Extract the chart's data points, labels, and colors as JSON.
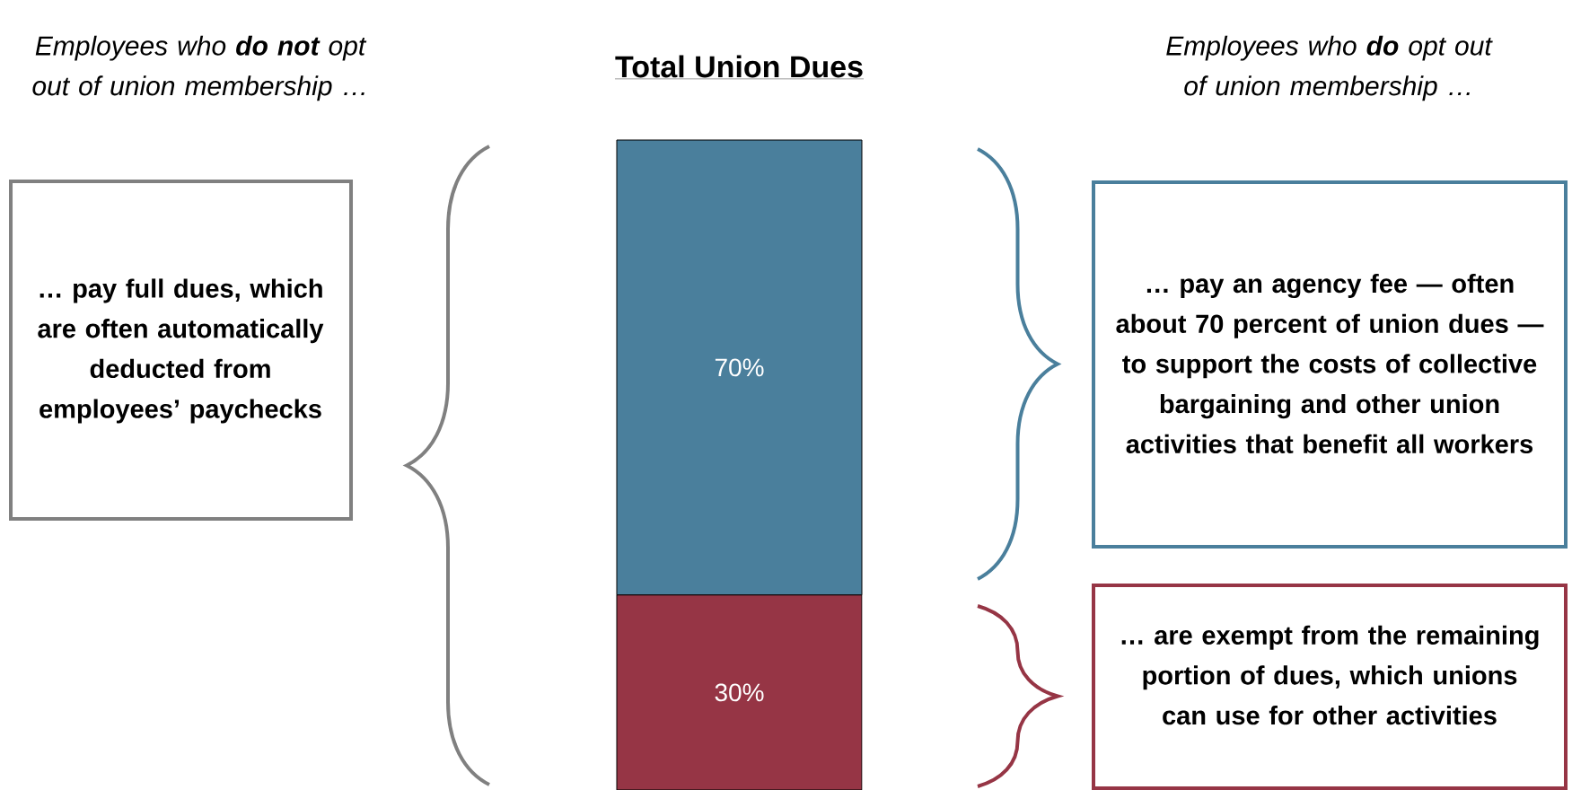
{
  "chart_data": {
    "type": "bar",
    "title": "Total Union Dues",
    "categories": [
      null
    ],
    "stacked": true,
    "tick_labels": false,
    "series": [
      {
        "color": "#963545",
        "values": [
          30
        ],
        "value_labels": [
          "30%"
        ]
      },
      {
        "color": "#4a7f9c",
        "values": [
          70
        ],
        "value_labels": [
          "70%"
        ]
      }
    ],
    "annotations": [
      "Employees who **do not** opt out of union membership …",
      "… pay full dues, which are often automatically deducted from employees’ paychecks",
      "Employees who **do** opt out of union membership …",
      "… pay an agency fee — often about 70 percent of union dues — to support the costs of collective bargaining and other union activities that benefit all workers",
      "… are exempt from the remaining portion of dues, which unions can use for other activities"
    ]
  }
}
